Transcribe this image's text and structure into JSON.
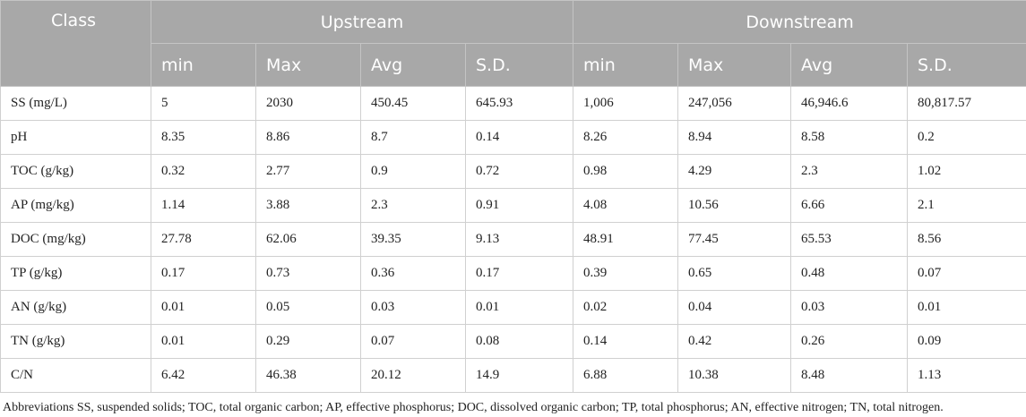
{
  "table": {
    "class_header": "Class",
    "groups": [
      "Upstream",
      "Downstream"
    ],
    "subheaders": [
      "min",
      "Max",
      "Avg",
      "S.D.",
      "min",
      "Max",
      "Avg",
      "S.D."
    ],
    "rows": [
      [
        "SS (mg/L)",
        "5",
        "2030",
        "450.45",
        "645.93",
        "1,006",
        "247,056",
        "46,946.6",
        "80,817.57"
      ],
      [
        "pH",
        "8.35",
        "8.86",
        "8.7",
        "0.14",
        "8.26",
        "8.94",
        "8.58",
        "0.2"
      ],
      [
        "TOC (g/kg)",
        "0.32",
        "2.77",
        "0.9",
        "0.72",
        "0.98",
        "4.29",
        "2.3",
        "1.02"
      ],
      [
        "AP (mg/kg)",
        "1.14",
        "3.88",
        "2.3",
        "0.91",
        "4.08",
        "10.56",
        "6.66",
        "2.1"
      ],
      [
        "DOC (mg/kg)",
        "27.78",
        "62.06",
        "39.35",
        "9.13",
        "48.91",
        "77.45",
        "65.53",
        "8.56"
      ],
      [
        "TP (g/kg)",
        "0.17",
        "0.73",
        "0.36",
        "0.17",
        "0.39",
        "0.65",
        "0.48",
        "0.07"
      ],
      [
        "AN (g/kg)",
        "0.01",
        "0.05",
        "0.03",
        "0.01",
        "0.02",
        "0.04",
        "0.03",
        "0.01"
      ],
      [
        "TN (g/kg)",
        "0.01",
        "0.29",
        "0.07",
        "0.08",
        "0.14",
        "0.42",
        "0.26",
        "0.09"
      ],
      [
        "C/N",
        "6.42",
        "46.38",
        "20.12",
        "14.9",
        "6.88",
        "10.38",
        "8.48",
        "1.13"
      ]
    ]
  },
  "footnote": "Abbreviations SS, suspended solids; TOC, total organic carbon; AP, effective phosphorus; DOC, dissolved organic carbon; TP, total phosphorus; AN, effective nitrogen; TN, total nitrogen.",
  "colors": {
    "header_background": "#a8a8a8",
    "header_text": "#ffffff",
    "grid_line": "#d0d0d0",
    "body_text": "#222222"
  }
}
